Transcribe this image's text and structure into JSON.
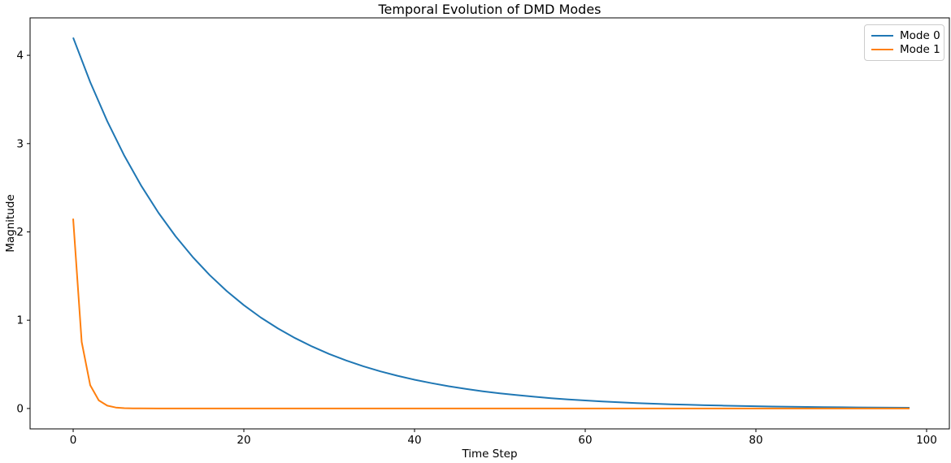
{
  "chart_data": {
    "type": "line",
    "title": "Temporal Evolution of DMD Modes",
    "xlabel": "Time Step",
    "ylabel": "Magnitude",
    "xlim": [
      -5.05,
      102.67
    ],
    "ylim": [
      -0.231,
      4.424
    ],
    "xticks": [
      0,
      20,
      40,
      60,
      80,
      100
    ],
    "yticks": [
      0,
      1,
      2,
      3,
      4
    ],
    "grid": false,
    "background": "#ffffff",
    "spine_color": "#000000",
    "legend": {
      "location": "upper right"
    },
    "series": [
      {
        "name": "Mode 0",
        "color": "#1f77b4",
        "x": [
          0,
          2,
          4,
          6,
          8,
          10,
          12,
          14,
          16,
          18,
          20,
          22,
          24,
          26,
          28,
          30,
          32,
          34,
          36,
          38,
          40,
          42,
          44,
          46,
          48,
          50,
          52,
          54,
          56,
          58,
          60,
          62,
          64,
          66,
          68,
          70,
          72,
          74,
          76,
          78,
          80,
          82,
          84,
          86,
          88,
          90,
          92,
          94,
          96,
          98
        ],
        "y": [
          4.2,
          3.696,
          3.2525,
          2.8622,
          2.5187,
          2.2165,
          1.9505,
          1.7164,
          1.5104,
          1.3292,
          1.1697,
          1.0293,
          0.9058,
          0.7971,
          0.7014,
          0.6173,
          0.5432,
          0.478,
          0.4206,
          0.3702,
          0.3257,
          0.2866,
          0.2523,
          0.222,
          0.1953,
          0.1719,
          0.1513,
          0.1331,
          0.1171,
          0.1031,
          0.0907,
          0.0798,
          0.0703,
          0.0618,
          0.0544,
          0.0479,
          0.0421,
          0.0371,
          0.0326,
          0.0287,
          0.0253,
          0.0222,
          0.0196,
          0.0172,
          0.0152,
          0.0133,
          0.0117,
          0.0103,
          0.0091,
          0.008
        ]
      },
      {
        "name": "Mode 1",
        "color": "#ff7f0e",
        "x": [
          0,
          1,
          2,
          3,
          4,
          5,
          6,
          7,
          8,
          10,
          14,
          20,
          30,
          40,
          50,
          60,
          70,
          80,
          90,
          98
        ],
        "y": [
          2.15,
          0.753,
          0.263,
          0.092,
          0.032,
          0.011,
          0.004,
          0.0014,
          0.0005,
          0.0001,
          0,
          0,
          0,
          0,
          0,
          0,
          0,
          0,
          0,
          0
        ]
      }
    ]
  }
}
